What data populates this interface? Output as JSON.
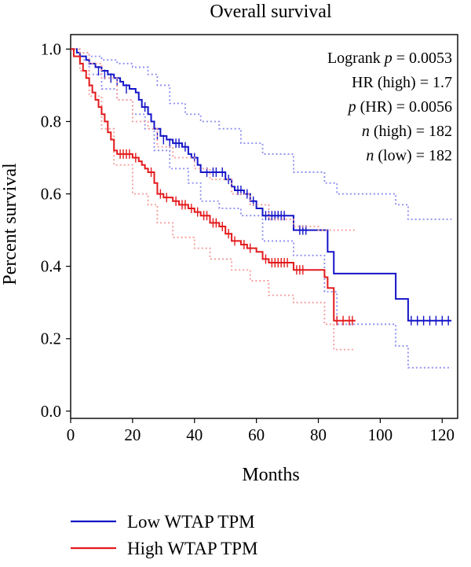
{
  "chart_data": {
    "type": "line",
    "title": "Overall survival",
    "xlabel": "Months",
    "ylabel": "Percent survival",
    "xlim": [
      0,
      125
    ],
    "ylim": [
      -0.02,
      1.04
    ],
    "xticks": [
      0,
      20,
      40,
      60,
      80,
      100,
      120
    ],
    "yticks": [
      0.0,
      0.2,
      0.4,
      0.6,
      0.8,
      1.0
    ],
    "xtick_labels": [
      "0",
      "20",
      "40",
      "60",
      "80",
      "100",
      "120"
    ],
    "ytick_labels": [
      "0.0",
      "0.2",
      "0.4",
      "0.6",
      "0.8",
      "1.0"
    ],
    "grid": false,
    "legend_position": "bottom-left",
    "stats": [
      {
        "italic": "",
        "pre": "Logrank ",
        "ital": "p",
        "post": " = 0.0053"
      },
      {
        "pre": "HR (high) = 1.7",
        "ital": "",
        "post": ""
      },
      {
        "pre": "",
        "ital": "p",
        "post": " (HR) = 0.0056"
      },
      {
        "pre": "",
        "ital": "n",
        "post": " (high) = 182"
      },
      {
        "pre": "",
        "ital": "n",
        "post": " (low) = 182"
      }
    ],
    "series": [
      {
        "name": "Low WTAP TPM",
        "color": "#1414c8",
        "steps": [
          [
            0,
            1.0
          ],
          [
            2,
            0.99
          ],
          [
            3,
            0.98
          ],
          [
            5,
            0.97
          ],
          [
            6,
            0.96
          ],
          [
            8,
            0.95
          ],
          [
            10,
            0.94
          ],
          [
            12,
            0.93
          ],
          [
            14,
            0.92
          ],
          [
            16,
            0.91
          ],
          [
            17,
            0.9
          ],
          [
            19,
            0.89
          ],
          [
            21,
            0.88
          ],
          [
            22,
            0.86
          ],
          [
            23,
            0.84
          ],
          [
            25,
            0.82
          ],
          [
            26,
            0.8
          ],
          [
            27,
            0.78
          ],
          [
            29,
            0.76
          ],
          [
            31,
            0.75
          ],
          [
            33,
            0.74
          ],
          [
            36,
            0.73
          ],
          [
            38,
            0.71
          ],
          [
            39,
            0.7
          ],
          [
            41,
            0.68
          ],
          [
            42,
            0.66
          ],
          [
            45,
            0.66
          ],
          [
            48,
            0.66
          ],
          [
            50,
            0.64
          ],
          [
            52,
            0.62
          ],
          [
            53,
            0.61
          ],
          [
            56,
            0.6
          ],
          [
            58,
            0.58
          ],
          [
            60,
            0.56
          ],
          [
            62,
            0.54
          ],
          [
            72,
            0.5
          ],
          [
            83,
            0.44
          ],
          [
            85,
            0.38
          ],
          [
            105,
            0.31
          ],
          [
            109,
            0.25
          ],
          [
            123,
            0.25
          ]
        ],
        "censors": [
          [
            9,
            0.94
          ],
          [
            11,
            0.93
          ],
          [
            13,
            0.92
          ],
          [
            15,
            0.91
          ],
          [
            18,
            0.89
          ],
          [
            24,
            0.84
          ],
          [
            28,
            0.76
          ],
          [
            30,
            0.75
          ],
          [
            32,
            0.74
          ],
          [
            34,
            0.74
          ],
          [
            35,
            0.74
          ],
          [
            37,
            0.73
          ],
          [
            40,
            0.7
          ],
          [
            44,
            0.66
          ],
          [
            46,
            0.66
          ],
          [
            47,
            0.66
          ],
          [
            49,
            0.66
          ],
          [
            51,
            0.64
          ],
          [
            54,
            0.61
          ],
          [
            55,
            0.61
          ],
          [
            57,
            0.6
          ],
          [
            59,
            0.58
          ],
          [
            63,
            0.54
          ],
          [
            64,
            0.54
          ],
          [
            65,
            0.54
          ],
          [
            66,
            0.54
          ],
          [
            67,
            0.54
          ],
          [
            68,
            0.54
          ],
          [
            69,
            0.54
          ],
          [
            74,
            0.5
          ],
          [
            75,
            0.5
          ],
          [
            76,
            0.5
          ],
          [
            110,
            0.25
          ],
          [
            112,
            0.25
          ],
          [
            114,
            0.25
          ],
          [
            116,
            0.25
          ],
          [
            118,
            0.25
          ],
          [
            120,
            0.25
          ],
          [
            122,
            0.25
          ]
        ],
        "ci_upper": [
          [
            0,
            1.0
          ],
          [
            3,
            0.99
          ],
          [
            6,
            0.98
          ],
          [
            10,
            0.97
          ],
          [
            15,
            0.96
          ],
          [
            20,
            0.95
          ],
          [
            25,
            0.93
          ],
          [
            28,
            0.9
          ],
          [
            32,
            0.85
          ],
          [
            37,
            0.82
          ],
          [
            42,
            0.8
          ],
          [
            48,
            0.78
          ],
          [
            55,
            0.74
          ],
          [
            62,
            0.71
          ],
          [
            72,
            0.66
          ],
          [
            82,
            0.63
          ],
          [
            86,
            0.6
          ],
          [
            105,
            0.57
          ],
          [
            109,
            0.53
          ],
          [
            123,
            0.53
          ]
        ],
        "ci_lower": [
          [
            0,
            1.0
          ],
          [
            3,
            0.97
          ],
          [
            6,
            0.93
          ],
          [
            10,
            0.89
          ],
          [
            15,
            0.86
          ],
          [
            20,
            0.82
          ],
          [
            24,
            0.78
          ],
          [
            27,
            0.72
          ],
          [
            32,
            0.67
          ],
          [
            38,
            0.63
          ],
          [
            42,
            0.58
          ],
          [
            48,
            0.56
          ],
          [
            55,
            0.54
          ],
          [
            62,
            0.47
          ],
          [
            72,
            0.43
          ],
          [
            82,
            0.33
          ],
          [
            86,
            0.24
          ],
          [
            105,
            0.18
          ],
          [
            109,
            0.12
          ],
          [
            123,
            0.12
          ]
        ]
      },
      {
        "name": "High WTAP TPM",
        "color": "#e31a1c",
        "steps": [
          [
            0,
            1.0
          ],
          [
            1,
            0.98
          ],
          [
            3,
            0.96
          ],
          [
            4,
            0.94
          ],
          [
            5,
            0.92
          ],
          [
            6,
            0.9
          ],
          [
            7,
            0.88
          ],
          [
            8,
            0.86
          ],
          [
            9,
            0.84
          ],
          [
            10,
            0.82
          ],
          [
            11,
            0.8
          ],
          [
            12,
            0.77
          ],
          [
            13,
            0.75
          ],
          [
            14,
            0.72
          ],
          [
            15,
            0.71
          ],
          [
            20,
            0.7
          ],
          [
            22,
            0.69
          ],
          [
            23,
            0.68
          ],
          [
            24,
            0.67
          ],
          [
            25,
            0.66
          ],
          [
            27,
            0.63
          ],
          [
            28,
            0.6
          ],
          [
            30,
            0.59
          ],
          [
            33,
            0.58
          ],
          [
            35,
            0.57
          ],
          [
            38,
            0.56
          ],
          [
            40,
            0.55
          ],
          [
            42,
            0.54
          ],
          [
            45,
            0.52
          ],
          [
            48,
            0.51
          ],
          [
            50,
            0.49
          ],
          [
            52,
            0.47
          ],
          [
            55,
            0.46
          ],
          [
            57,
            0.45
          ],
          [
            60,
            0.44
          ],
          [
            62,
            0.42
          ],
          [
            64,
            0.41
          ],
          [
            72,
            0.39
          ],
          [
            82,
            0.37
          ],
          [
            83,
            0.34
          ],
          [
            85,
            0.25
          ],
          [
            92,
            0.25
          ]
        ],
        "censors": [
          [
            16,
            0.71
          ],
          [
            17,
            0.71
          ],
          [
            18,
            0.71
          ],
          [
            19,
            0.71
          ],
          [
            21,
            0.7
          ],
          [
            26,
            0.66
          ],
          [
            29,
            0.6
          ],
          [
            31,
            0.59
          ],
          [
            34,
            0.58
          ],
          [
            36,
            0.57
          ],
          [
            37,
            0.57
          ],
          [
            39,
            0.56
          ],
          [
            41,
            0.55
          ],
          [
            43,
            0.54
          ],
          [
            44,
            0.54
          ],
          [
            46,
            0.52
          ],
          [
            47,
            0.52
          ],
          [
            49,
            0.51
          ],
          [
            51,
            0.49
          ],
          [
            53,
            0.47
          ],
          [
            56,
            0.46
          ],
          [
            58,
            0.45
          ],
          [
            63,
            0.42
          ],
          [
            65,
            0.41
          ],
          [
            66,
            0.41
          ],
          [
            67,
            0.41
          ],
          [
            68,
            0.41
          ],
          [
            69,
            0.41
          ],
          [
            70,
            0.41
          ],
          [
            73,
            0.39
          ],
          [
            74,
            0.39
          ],
          [
            75,
            0.39
          ],
          [
            86,
            0.25
          ],
          [
            88,
            0.25
          ],
          [
            90,
            0.25
          ],
          [
            91,
            0.25
          ]
        ],
        "ci_upper": [
          [
            0,
            1.0
          ],
          [
            3,
            0.99
          ],
          [
            6,
            0.96
          ],
          [
            10,
            0.92
          ],
          [
            15,
            0.86
          ],
          [
            20,
            0.8
          ],
          [
            25,
            0.78
          ],
          [
            28,
            0.73
          ],
          [
            33,
            0.7
          ],
          [
            40,
            0.67
          ],
          [
            45,
            0.64
          ],
          [
            52,
            0.6
          ],
          [
            58,
            0.57
          ],
          [
            64,
            0.53
          ],
          [
            72,
            0.51
          ],
          [
            80,
            0.5
          ],
          [
            92,
            0.5
          ]
        ],
        "ci_lower": [
          [
            0,
            1.0
          ],
          [
            3,
            0.94
          ],
          [
            6,
            0.87
          ],
          [
            10,
            0.78
          ],
          [
            14,
            0.68
          ],
          [
            20,
            0.6
          ],
          [
            25,
            0.57
          ],
          [
            28,
            0.52
          ],
          [
            33,
            0.48
          ],
          [
            40,
            0.45
          ],
          [
            45,
            0.42
          ],
          [
            52,
            0.39
          ],
          [
            58,
            0.36
          ],
          [
            64,
            0.32
          ],
          [
            72,
            0.3
          ],
          [
            82,
            0.24
          ],
          [
            85,
            0.17
          ],
          [
            92,
            0.17
          ]
        ]
      }
    ]
  }
}
